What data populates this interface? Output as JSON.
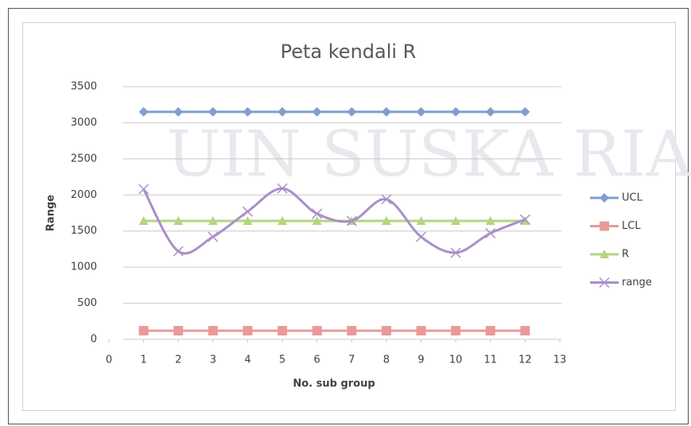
{
  "watermark": "UIN SUSKA RIA",
  "chart_data": {
    "type": "line",
    "title": "Peta kendali R",
    "xlabel": "No. sub group",
    "ylabel": "Range",
    "x": [
      1,
      2,
      3,
      4,
      5,
      6,
      7,
      8,
      9,
      10,
      11,
      12
    ],
    "xlim": [
      0,
      13
    ],
    "xticks": [
      0,
      1,
      2,
      3,
      4,
      5,
      6,
      7,
      8,
      9,
      10,
      11,
      12,
      13
    ],
    "ylim": [
      0,
      3500
    ],
    "yticks": [
      0,
      500,
      1000,
      1500,
      2000,
      2500,
      3000,
      3500
    ],
    "grid": true,
    "legend": "right",
    "series": [
      {
        "name": "UCL",
        "color": "#7f9fd0",
        "marker": "diamond",
        "smooth": false,
        "values": [
          3150,
          3150,
          3150,
          3150,
          3150,
          3150,
          3150,
          3150,
          3150,
          3150,
          3150,
          3150
        ]
      },
      {
        "name": "LCL",
        "color": "#e89a9a",
        "marker": "square",
        "smooth": false,
        "values": [
          120,
          120,
          120,
          120,
          120,
          120,
          120,
          120,
          120,
          120,
          120,
          120
        ]
      },
      {
        "name": "R",
        "color": "#b3d67f",
        "marker": "triangle",
        "smooth": false,
        "values": [
          1640,
          1640,
          1640,
          1640,
          1640,
          1640,
          1640,
          1640,
          1640,
          1640,
          1640,
          1640
        ]
      },
      {
        "name": "range",
        "color": "#a98fc8",
        "marker": "x",
        "smooth": true,
        "values": [
          2080,
          1220,
          1420,
          1770,
          2090,
          1740,
          1640,
          1940,
          1420,
          1200,
          1470,
          1660
        ]
      }
    ]
  }
}
